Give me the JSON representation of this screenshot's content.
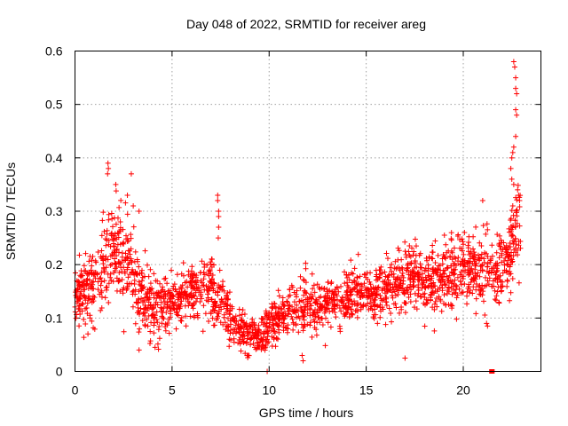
{
  "chart_data": {
    "type": "scatter",
    "title": "Day 048 of 2022, SRMTID for receiver areg",
    "xlabel": "GPS time / hours",
    "ylabel": "SRMTID / TECUs",
    "xlim": [
      0,
      24
    ],
    "ylim": [
      0,
      0.6
    ],
    "xticks": [
      0,
      5,
      10,
      15,
      20
    ],
    "xtick_labels": [
      "0",
      "5",
      "10",
      "15",
      "20"
    ],
    "yticks": [
      0,
      0.1,
      0.2,
      0.3,
      0.4,
      0.5,
      0.6
    ],
    "ytick_labels": [
      "0",
      "0.1",
      "0.2",
      "0.3",
      "0.4",
      "0.5",
      "0.6"
    ],
    "grid": true,
    "marker": "plus",
    "color": "#ff0000",
    "trend": [
      {
        "x": 0.0,
        "y": 0.14,
        "s": 0.035
      },
      {
        "x": 1.0,
        "y": 0.17,
        "s": 0.045
      },
      {
        "x": 1.8,
        "y": 0.22,
        "s": 0.055
      },
      {
        "x": 2.6,
        "y": 0.21,
        "s": 0.05
      },
      {
        "x": 3.3,
        "y": 0.15,
        "s": 0.04
      },
      {
        "x": 4.0,
        "y": 0.12,
        "s": 0.03
      },
      {
        "x": 5.0,
        "y": 0.13,
        "s": 0.03
      },
      {
        "x": 6.0,
        "y": 0.15,
        "s": 0.03
      },
      {
        "x": 7.0,
        "y": 0.16,
        "s": 0.04
      },
      {
        "x": 7.6,
        "y": 0.12,
        "s": 0.035
      },
      {
        "x": 8.5,
        "y": 0.08,
        "s": 0.025
      },
      {
        "x": 9.5,
        "y": 0.06,
        "s": 0.02
      },
      {
        "x": 10.5,
        "y": 0.1,
        "s": 0.025
      },
      {
        "x": 11.5,
        "y": 0.12,
        "s": 0.03
      },
      {
        "x": 12.5,
        "y": 0.12,
        "s": 0.03
      },
      {
        "x": 13.5,
        "y": 0.13,
        "s": 0.03
      },
      {
        "x": 14.5,
        "y": 0.15,
        "s": 0.03
      },
      {
        "x": 15.5,
        "y": 0.14,
        "s": 0.03
      },
      {
        "x": 16.5,
        "y": 0.17,
        "s": 0.035
      },
      {
        "x": 17.5,
        "y": 0.18,
        "s": 0.035
      },
      {
        "x": 18.5,
        "y": 0.17,
        "s": 0.035
      },
      {
        "x": 19.5,
        "y": 0.18,
        "s": 0.04
      },
      {
        "x": 20.5,
        "y": 0.2,
        "s": 0.04
      },
      {
        "x": 21.5,
        "y": 0.19,
        "s": 0.035
      },
      {
        "x": 22.2,
        "y": 0.2,
        "s": 0.035
      },
      {
        "x": 22.8,
        "y": 0.28,
        "s": 0.05
      }
    ],
    "highlights": [
      {
        "x": 1.7,
        "y": 0.39
      },
      {
        "x": 1.72,
        "y": 0.38
      },
      {
        "x": 1.68,
        "y": 0.37
      },
      {
        "x": 2.1,
        "y": 0.35
      },
      {
        "x": 2.9,
        "y": 0.37
      },
      {
        "x": 2.7,
        "y": 0.33
      },
      {
        "x": 3.0,
        "y": 0.31
      },
      {
        "x": 3.3,
        "y": 0.3
      },
      {
        "x": 3.3,
        "y": 0.04
      },
      {
        "x": 7.35,
        "y": 0.33
      },
      {
        "x": 7.35,
        "y": 0.32
      },
      {
        "x": 7.4,
        "y": 0.3
      },
      {
        "x": 7.4,
        "y": 0.29
      },
      {
        "x": 7.4,
        "y": 0.27
      },
      {
        "x": 7.38,
        "y": 0.25
      },
      {
        "x": 9.9,
        "y": 0.0
      },
      {
        "x": 11.7,
        "y": 0.03
      },
      {
        "x": 11.75,
        "y": 0.02
      },
      {
        "x": 17.0,
        "y": 0.025
      },
      {
        "x": 21.0,
        "y": 0.32
      },
      {
        "x": 22.6,
        "y": 0.58
      },
      {
        "x": 22.65,
        "y": 0.57
      },
      {
        "x": 22.7,
        "y": 0.55
      },
      {
        "x": 22.7,
        "y": 0.53
      },
      {
        "x": 22.75,
        "y": 0.52
      },
      {
        "x": 22.7,
        "y": 0.49
      },
      {
        "x": 22.75,
        "y": 0.48
      },
      {
        "x": 22.7,
        "y": 0.44
      },
      {
        "x": 22.6,
        "y": 0.42
      },
      {
        "x": 22.55,
        "y": 0.41
      },
      {
        "x": 22.5,
        "y": 0.4
      },
      {
        "x": 22.45,
        "y": 0.38
      },
      {
        "x": 22.5,
        "y": 0.36
      },
      {
        "x": 22.6,
        "y": 0.35
      },
      {
        "x": 22.8,
        "y": 0.34
      },
      {
        "x": 22.85,
        "y": 0.33
      },
      {
        "x": 22.9,
        "y": 0.32
      },
      {
        "x": 22.55,
        "y": 0.31
      },
      {
        "x": 21.2,
        "y": 0.09
      },
      {
        "x": 21.25,
        "y": 0.085
      }
    ],
    "square_markers": [
      {
        "x": 21.45,
        "y": 0.0
      },
      {
        "x": 21.5,
        "y": 0.0
      }
    ],
    "points_per_hour": 95,
    "seed": 48
  }
}
